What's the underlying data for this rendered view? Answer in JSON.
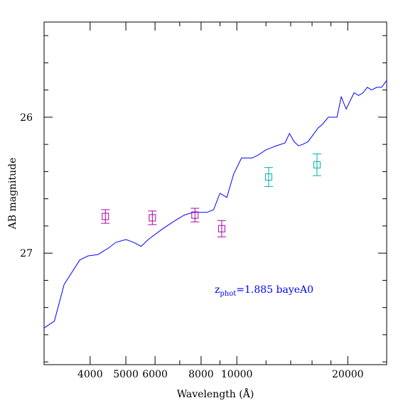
{
  "chart_data": {
    "type": "line",
    "xlabel": "Wavelength (Å)",
    "ylabel": "AB magnitude",
    "x_scale": "log",
    "xlim": [
      3000,
      25500
    ],
    "ylim": [
      27.82,
      25.3
    ],
    "y_ticks": [
      26,
      27
    ],
    "y_tick_labels": [
      "26",
      "27"
    ],
    "y_minor_step": 0.2,
    "x_ticks": [
      4000,
      5000,
      6000,
      8000,
      10000,
      20000
    ],
    "x_tick_labels": [
      "4000",
      "5000",
      "6000",
      "8000",
      "10000",
      "20000"
    ],
    "x_minor_ticks": [
      3000,
      7000,
      9000,
      12000,
      14000,
      16000,
      18000
    ],
    "grid": false,
    "annotation": {
      "text_main": "z",
      "text_sub": "phot",
      "text_rest": "=1.885 bayeA0",
      "color": "#0000ff"
    },
    "series": [
      {
        "style": "line",
        "color": "#0000ff",
        "x": [
          3000,
          3200,
          3400,
          3750,
          3950,
          4200,
          4500,
          4700,
          5000,
          5250,
          5500,
          5750,
          6300,
          6800,
          7200,
          7600,
          7900,
          8300,
          8650,
          9000,
          9400,
          9800,
          10300,
          11000,
          11400,
          12000,
          12800,
          13500,
          13900,
          14300,
          14700,
          15100,
          15600,
          16100,
          16600,
          17100,
          17700,
          18200,
          18700,
          19200,
          19800,
          20300,
          20800,
          21400,
          22000,
          22600,
          23200,
          24000,
          24700,
          25500
        ],
        "y": [
          27.55,
          27.5,
          27.23,
          27.05,
          27.02,
          27.01,
          26.96,
          26.92,
          26.9,
          26.92,
          26.95,
          26.9,
          26.82,
          26.76,
          26.72,
          26.7,
          26.7,
          26.7,
          26.68,
          26.56,
          26.59,
          26.42,
          26.3,
          26.3,
          26.28,
          26.24,
          26.21,
          26.19,
          26.12,
          26.18,
          26.21,
          26.2,
          26.18,
          26.13,
          26.08,
          26.05,
          26.0,
          26.0,
          26.0,
          25.85,
          25.94,
          25.88,
          25.82,
          25.84,
          25.82,
          25.78,
          25.8,
          25.78,
          25.78,
          25.73
        ]
      },
      {
        "style": "errorbar-square",
        "color": "#aa00aa",
        "x": [
          4400,
          5900,
          7700,
          9100
        ],
        "y": [
          26.73,
          26.74,
          26.72,
          26.82
        ],
        "yerr": [
          0.05,
          0.05,
          0.05,
          0.06
        ]
      },
      {
        "style": "errorbar-square",
        "color": "#00b0b0",
        "x": [
          12200,
          16500
        ],
        "y": [
          26.44,
          26.35
        ],
        "yerr": [
          0.07,
          0.08
        ]
      }
    ]
  }
}
